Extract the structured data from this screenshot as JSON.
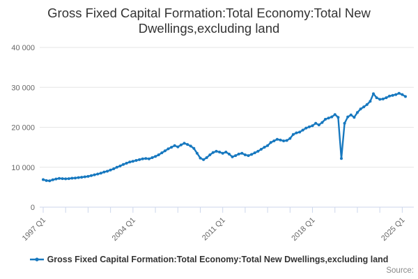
{
  "title": {
    "line1": "Gross Fixed Capital Formation:Total Economy:Total New",
    "line2": "Dwellings,excluding land"
  },
  "legend": {
    "label": "Gross Fixed Capital Formation:Total Economy:Total New Dwellings,excluding land"
  },
  "source_label": "Source:",
  "colors": {
    "line": "#1778bf",
    "marker": "#1778bf",
    "grid": "#e6e6e6",
    "axis": "#ccd6eb",
    "tick_label": "#666666",
    "title_text": "#333333",
    "legend_text": "#333333",
    "source_text": "#888888"
  },
  "chart_data": {
    "type": "line",
    "title": "Gross Fixed Capital Formation:Total Economy:Total New Dwellings,excluding land",
    "xlabel": "",
    "ylabel": "",
    "x_start": "1997 Q1",
    "x_end": "2025 Q2",
    "x_frequency": "quarterly",
    "x_tick_labels": [
      "1997 Q1",
      "2004 Q1",
      "2011 Q1",
      "2018 Q1",
      "2025 Q1"
    ],
    "x_labeled_tick_indices": [
      0,
      28,
      56,
      84,
      112
    ],
    "x_minor_tick_every": 7,
    "y_ticks": [
      0,
      10000,
      20000,
      30000,
      40000
    ],
    "y_tick_labels": [
      "0",
      "10 000",
      "20 000",
      "30 000",
      "40 000"
    ],
    "ylim": [
      0,
      40000
    ],
    "grid": "horizontal-only",
    "legend_position": "bottom",
    "values": [
      6900,
      6650,
      6600,
      6850,
      7050,
      7200,
      7150,
      7100,
      7150,
      7250,
      7300,
      7400,
      7500,
      7600,
      7700,
      7900,
      8100,
      8300,
      8500,
      8800,
      9000,
      9300,
      9600,
      10000,
      10300,
      10700,
      11000,
      11300,
      11500,
      11700,
      11900,
      12100,
      12200,
      12100,
      12400,
      12700,
      13100,
      13600,
      14100,
      14600,
      15000,
      15400,
      15100,
      15600,
      16000,
      15700,
      15300,
      14700,
      13500,
      12300,
      11900,
      12400,
      13100,
      13700,
      14000,
      13800,
      13500,
      13800,
      13300,
      12600,
      12900,
      13300,
      13500,
      13100,
      12900,
      13200,
      13600,
      14000,
      14500,
      15000,
      15400,
      16200,
      16600,
      17000,
      16800,
      16600,
      16700,
      17200,
      18200,
      18600,
      18800,
      19300,
      19800,
      20100,
      20400,
      21000,
      20600,
      21200,
      22000,
      22300,
      22600,
      23200,
      22500,
      12200,
      21000,
      22600,
      23100,
      22500,
      23700,
      24600,
      25100,
      25700,
      26500,
      28400,
      27400,
      27000,
      27100,
      27400,
      27800,
      28000,
      28200,
      28500,
      28200,
      27700
    ]
  }
}
